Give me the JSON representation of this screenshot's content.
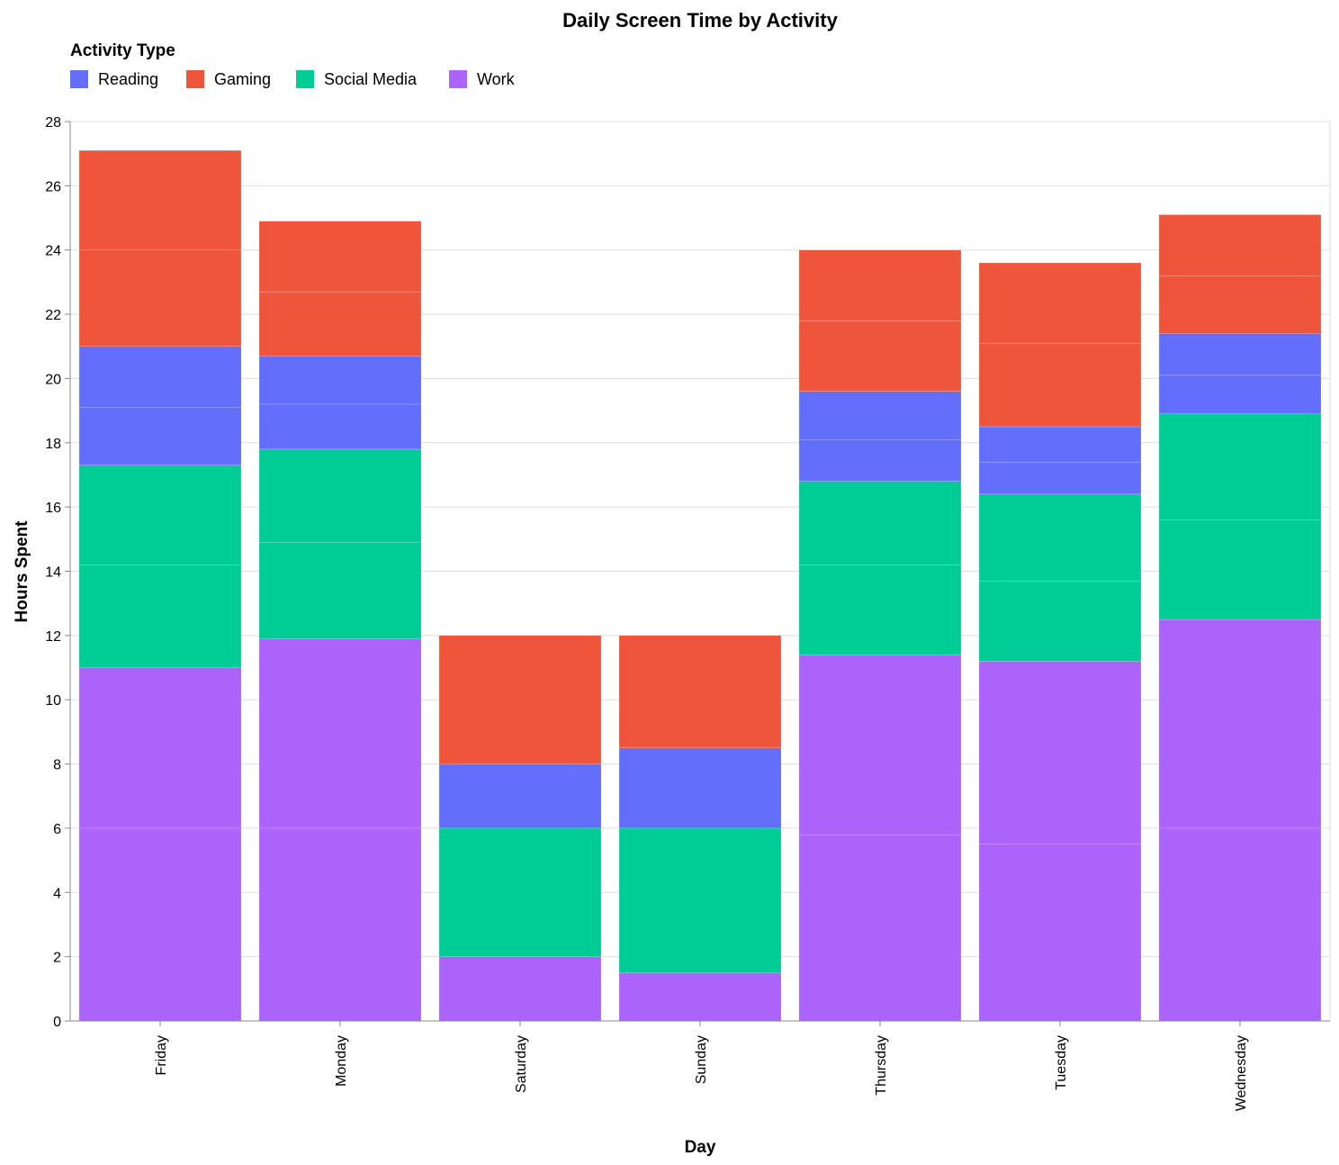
{
  "chart_data": {
    "type": "bar",
    "stacked": true,
    "title": "Daily Screen Time by Activity",
    "xlabel": "Day",
    "ylabel": "Hours Spent",
    "ylim": [
      0,
      28
    ],
    "yticks": [
      0,
      2,
      4,
      6,
      8,
      10,
      12,
      14,
      16,
      18,
      20,
      22,
      24,
      26,
      28
    ],
    "grid": true,
    "legend": {
      "title": "Activity Type",
      "position": "top-left",
      "order": [
        "Reading",
        "Gaming",
        "Social Media",
        "Work"
      ]
    },
    "categories": [
      "Friday",
      "Monday",
      "Saturday",
      "Sunday",
      "Thursday",
      "Tuesday",
      "Wednesday"
    ],
    "stack_order": [
      "Work",
      "Social Media",
      "Reading",
      "Gaming"
    ],
    "series": [
      {
        "name": "Work",
        "color": "#ab63fa",
        "segments": [
          [
            6.0,
            5.0
          ],
          [
            6.0,
            5.9
          ],
          [
            2.0
          ],
          [
            1.5
          ],
          [
            5.8,
            5.6
          ],
          [
            5.5,
            5.7
          ],
          [
            6.0,
            6.5
          ]
        ]
      },
      {
        "name": "Social Media",
        "color": "#00cc96",
        "segments": [
          [
            3.2,
            3.1
          ],
          [
            3.0,
            2.9
          ],
          [
            4.0
          ],
          [
            4.5
          ],
          [
            2.8,
            2.6
          ],
          [
            2.5,
            2.7
          ],
          [
            3.1,
            3.3
          ]
        ]
      },
      {
        "name": "Reading",
        "color": "#636efa",
        "segments": [
          [
            1.8,
            1.9
          ],
          [
            1.4,
            1.5
          ],
          [
            2.0
          ],
          [
            2.5
          ],
          [
            1.3,
            1.5
          ],
          [
            1.0,
            1.1
          ],
          [
            1.2,
            1.3
          ]
        ]
      },
      {
        "name": "Gaming",
        "color": "#ef553b",
        "segments": [
          [
            3.0,
            3.1
          ],
          [
            2.0,
            2.2
          ],
          [
            4.0
          ],
          [
            3.5
          ],
          [
            2.2,
            2.2
          ],
          [
            2.6,
            2.5
          ],
          [
            1.8,
            1.9
          ]
        ]
      }
    ]
  }
}
